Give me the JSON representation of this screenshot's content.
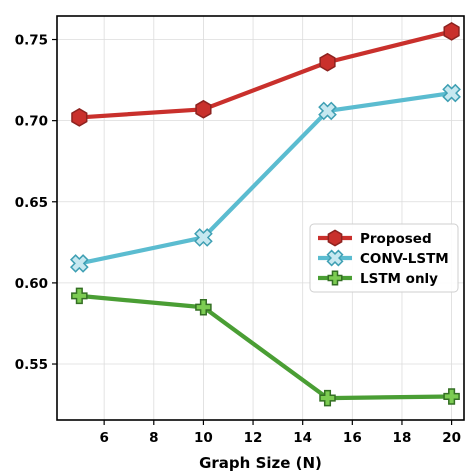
{
  "chart_data": {
    "type": "line",
    "title": "",
    "xlabel": "Graph Size (N)",
    "ylabel": "",
    "xlim": [
      4.1,
      20.5
    ],
    "ylim": [
      0.5155,
      0.7645
    ],
    "xticks": [
      6,
      8,
      10,
      12,
      14,
      16,
      18,
      20
    ],
    "yticks": [
      0.55,
      0.6,
      0.65,
      0.7,
      0.75
    ],
    "xtick_labels": [
      "6",
      "8",
      "10",
      "12",
      "14",
      "16",
      "18",
      "20"
    ],
    "ytick_labels": [
      "0.55",
      "0.60",
      "0.65",
      "0.70",
      "0.75"
    ],
    "grid": true,
    "legend_position": "center-right",
    "x": [
      5,
      10,
      15,
      20
    ],
    "series": [
      {
        "name": "Proposed",
        "values": [
          0.702,
          0.707,
          0.736,
          0.755
        ],
        "color": "#c9302c",
        "marker": "hexagon"
      },
      {
        "name": "CONV-LSTM",
        "values": [
          0.612,
          0.628,
          0.706,
          0.717
        ],
        "color": "#5bbcd0",
        "marker": "x"
      },
      {
        "name": "LSTM only",
        "values": [
          0.592,
          0.585,
          0.529,
          0.53
        ],
        "color": "#4a9e34",
        "marker": "plus"
      }
    ]
  }
}
